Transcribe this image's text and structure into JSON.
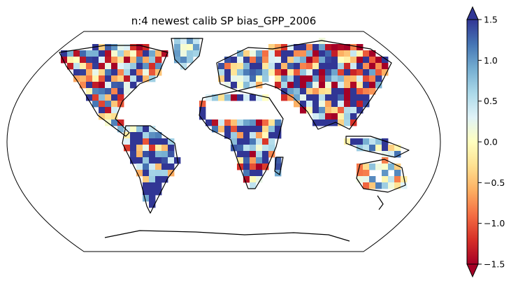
{
  "title": "n:4 newest calib SP  bias_GPP_2006",
  "colorbar": {
    "ticks": [
      "1.5",
      "1.0",
      "0.5",
      "0.0",
      "−0.5",
      "−1.0",
      "−1.5"
    ],
    "values": [
      1.5,
      1.0,
      0.5,
      0.0,
      -0.5,
      -1.0,
      -1.5
    ],
    "min": -1.5,
    "max": 1.5,
    "extend": "both",
    "colormap": "RdYlBu",
    "stops": [
      "#a50026",
      "#d73027",
      "#f46d43",
      "#fdae61",
      "#fee090",
      "#ffffbf",
      "#e0f3f8",
      "#abd9e9",
      "#74add1",
      "#4575b4",
      "#313695"
    ]
  },
  "map": {
    "projection": "Robinson",
    "coastline_color": "#000000",
    "ocean_color": "#ffffff"
  }
}
